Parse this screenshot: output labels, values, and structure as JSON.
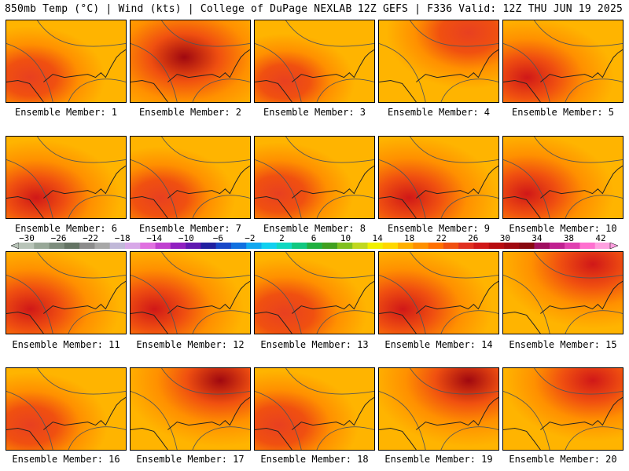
{
  "header": {
    "left": "850mb Temp (°C) | Wind (kts) | College of DuPage NEXLAB",
    "right": "12Z GEFS | F336 Valid: 12Z THU JUN 19 2025"
  },
  "members": [
    {
      "label": "Ensemble Member: 1",
      "hot": "west",
      "intensity": 0.45
    },
    {
      "label": "Ensemble Member: 2",
      "hot": "center-north",
      "intensity": 0.95
    },
    {
      "label": "Ensemble Member: 3",
      "hot": "southwest",
      "intensity": 0.35
    },
    {
      "label": "Ensemble Member: 4",
      "hot": "north",
      "intensity": 0.6
    },
    {
      "label": "Ensemble Member: 5",
      "hot": "west",
      "intensity": 0.7
    },
    {
      "label": "Ensemble Member: 6",
      "hot": "southwest",
      "intensity": 0.65
    },
    {
      "label": "Ensemble Member: 7",
      "hot": "southwest",
      "intensity": 0.45
    },
    {
      "label": "Ensemble Member: 8",
      "hot": "west",
      "intensity": 0.45
    },
    {
      "label": "Ensemble Member: 9",
      "hot": "southwest",
      "intensity": 0.75
    },
    {
      "label": "Ensemble Member: 10",
      "hot": "west",
      "intensity": 0.7
    },
    {
      "label": "Ensemble Member: 11",
      "hot": "west",
      "intensity": 0.75
    },
    {
      "label": "Ensemble Member: 12",
      "hot": "west",
      "intensity": 0.75
    },
    {
      "label": "Ensemble Member: 13",
      "hot": "southwest",
      "intensity": 0.6
    },
    {
      "label": "Ensemble Member: 14",
      "hot": "west",
      "intensity": 0.75
    },
    {
      "label": "Ensemble Member: 15",
      "hot": "north",
      "intensity": 0.85
    },
    {
      "label": "Ensemble Member: 16",
      "hot": "west",
      "intensity": 0.5
    },
    {
      "label": "Ensemble Member: 17",
      "hot": "north",
      "intensity": 0.9
    },
    {
      "label": "Ensemble Member: 18",
      "hot": "west",
      "intensity": 0.55
    },
    {
      "label": "Ensemble Member: 19",
      "hot": "north",
      "intensity": 0.9
    },
    {
      "label": "Ensemble Member: 20",
      "hot": "north",
      "intensity": 0.75
    }
  ],
  "colorbar": {
    "ticks": [
      "-30",
      "-26",
      "-22",
      "-18",
      "-14",
      "-10",
      "-6",
      "-2",
      "2",
      "6",
      "10",
      "14",
      "18",
      "22",
      "26",
      "30",
      "34",
      "38",
      "42"
    ],
    "colors": [
      "#b8c4b8",
      "#98a898",
      "#7c8c7c",
      "#647464",
      "#8c8c8c",
      "#a8a8a8",
      "#c0b8d8",
      "#d8a8e8",
      "#e070e0",
      "#c040d0",
      "#9020c0",
      "#6018b0",
      "#2020a0",
      "#1848c8",
      "#1070e0",
      "#10a8f0",
      "#10d0f0",
      "#10d8c0",
      "#10c880",
      "#20b040",
      "#40a020",
      "#80c020",
      "#c0d820",
      "#f0f000",
      "#ffd800",
      "#ffb000",
      "#ff9000",
      "#ff7000",
      "#f05010",
      "#e03020",
      "#d01818",
      "#b80c10",
      "#a00810",
      "#880810",
      "#a01060",
      "#c02090",
      "#e040b0",
      "#ff70d0",
      "#ffa0e0"
    ]
  }
}
